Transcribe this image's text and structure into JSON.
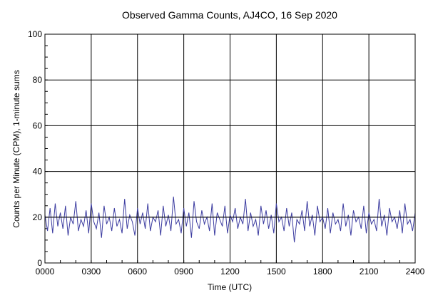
{
  "chart_data": {
    "type": "line",
    "title": "Observed Gamma Counts, AJ4CO, 16 Sep 2020",
    "xlabel": "Time (UTC)",
    "ylabel": "Counts per Minute (CPM), 1-minute sums",
    "xlim": [
      0,
      24
    ],
    "ylim": [
      0,
      100
    ],
    "x_ticks": [
      {
        "value": 0,
        "label": "0000"
      },
      {
        "value": 3,
        "label": "0300"
      },
      {
        "value": 6,
        "label": "0600"
      },
      {
        "value": 9,
        "label": "0900"
      },
      {
        "value": 12,
        "label": "1200"
      },
      {
        "value": 15,
        "label": "1500"
      },
      {
        "value": 18,
        "label": "1800"
      },
      {
        "value": 21,
        "label": "2100"
      },
      {
        "value": 24,
        "label": "2400"
      }
    ],
    "y_ticks": [
      {
        "value": 0,
        "label": "0"
      },
      {
        "value": 20,
        "label": "20"
      },
      {
        "value": 40,
        "label": "40"
      },
      {
        "value": 60,
        "label": "60"
      },
      {
        "value": 80,
        "label": "80"
      },
      {
        "value": 100,
        "label": "100"
      }
    ],
    "grid": true,
    "reference_line": {
      "y": 20
    },
    "series": [
      {
        "color": "#3c3ca0",
        "x_unit": "hours UTC",
        "sample_every_minutes": 10,
        "values": [
          21,
          14,
          24,
          13,
          26,
          16,
          22,
          15,
          25,
          12,
          20,
          17,
          27,
          14,
          19,
          16,
          23,
          13,
          26,
          18,
          15,
          22,
          11,
          25,
          17,
          20,
          14,
          24,
          16,
          19,
          13,
          28,
          15,
          21,
          18,
          12,
          24,
          17,
          22,
          15,
          26,
          14,
          20,
          18,
          23,
          12,
          25,
          16,
          21,
          14,
          29,
          17,
          19,
          13,
          24,
          16,
          22,
          11,
          27,
          18,
          15,
          23,
          17,
          20,
          14,
          26,
          12,
          22,
          19,
          16,
          25,
          13,
          21,
          18,
          24,
          15,
          20,
          17,
          28,
          14,
          22,
          16,
          19,
          12,
          25,
          17,
          23,
          15,
          21,
          13,
          26,
          18,
          20,
          14,
          24,
          16,
          22,
          9,
          19,
          17,
          23,
          14,
          27,
          16,
          21,
          12,
          25,
          18,
          20,
          15,
          24,
          13,
          22,
          17,
          19,
          14,
          26,
          16,
          21,
          12,
          23,
          18,
          20,
          15,
          25,
          13,
          22,
          17,
          19,
          14,
          28,
          16,
          21,
          12,
          24,
          18,
          20,
          15,
          23,
          13,
          26,
          17,
          19,
          14,
          22,
          16,
          25,
          12,
          21,
          18,
          24,
          15,
          20,
          13,
          27,
          17,
          22,
          14,
          19,
          16,
          25,
          12,
          23,
          18,
          21,
          15,
          24,
          13,
          20,
          17,
          26,
          14,
          22,
          16,
          19,
          12,
          25,
          18,
          21,
          15,
          23,
          13,
          27,
          17,
          20,
          14,
          24,
          16,
          22,
          12,
          19,
          18,
          25,
          15,
          21,
          13,
          26,
          17,
          23,
          14,
          20,
          16,
          24,
          12,
          22,
          18,
          19,
          15,
          27,
          13,
          21,
          17,
          25,
          14,
          23,
          16,
          20,
          12,
          24,
          18,
          22,
          15,
          19,
          13,
          26,
          17,
          21,
          14,
          25,
          16,
          23,
          12,
          20,
          18,
          28,
          15,
          22,
          13,
          19,
          17,
          24,
          14,
          21,
          16,
          26,
          12,
          23,
          18,
          20,
          15,
          25,
          13,
          22,
          17,
          19,
          14,
          27,
          16,
          21,
          12,
          24,
          18,
          20,
          15,
          23,
          13,
          26,
          17,
          22,
          14,
          19,
          16,
          25,
          12,
          21,
          18,
          24,
          15,
          20,
          13,
          23,
          17,
          22,
          14,
          27,
          16,
          19,
          12,
          25,
          18,
          21,
          15,
          24
        ]
      }
    ]
  }
}
